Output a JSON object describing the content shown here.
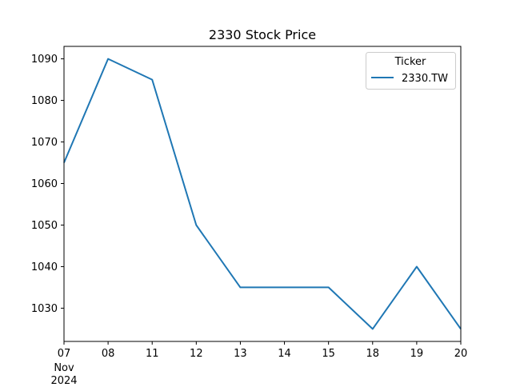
{
  "chart_data": {
    "type": "line",
    "title": "2330 Stock Price",
    "xlabel": "",
    "ylabel": "",
    "x": [
      "2024-11-07",
      "2024-11-08",
      "2024-11-11",
      "2024-11-12",
      "2024-11-13",
      "2024-11-14",
      "2024-11-15",
      "2024-11-18",
      "2024-11-19",
      "2024-11-20"
    ],
    "x_tick_labels": [
      "07",
      "08",
      "11",
      "12",
      "13",
      "14",
      "15",
      "18",
      "19",
      "20"
    ],
    "x_tick_sublabel": [
      "Nov",
      "2024"
    ],
    "series": [
      {
        "name": "2330.TW",
        "color": "#1f77b4",
        "values": [
          1065,
          1090,
          1085,
          1050,
          1035,
          1035,
          1035,
          1025,
          1040,
          1025
        ]
      }
    ],
    "ylim": [
      1022,
      1093
    ],
    "yticks": [
      1030,
      1040,
      1050,
      1060,
      1070,
      1080,
      1090
    ],
    "legend": {
      "title": "Ticker",
      "placement": "top-right"
    },
    "grid": false
  }
}
